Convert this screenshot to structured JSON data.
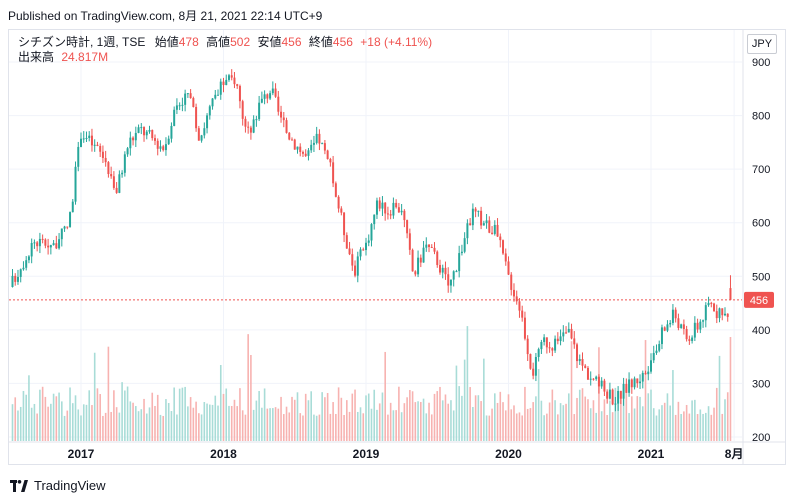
{
  "published": "Published on TradingView.com, 8月 21, 2021 22:14 UTC+9",
  "legend": {
    "symbol": "シチズン時計, 1週, TSE",
    "open_label": "始値",
    "open": "478",
    "high_label": "高値",
    "high": "502",
    "low_label": "安値",
    "low": "456",
    "close_label": "終値",
    "close": "456",
    "change": "+18 (+4.11%)",
    "volume_label": "出来高",
    "volume": "24.817M"
  },
  "currency": "JPY",
  "last_price_label": "456",
  "footer": {
    "brand": "TradingView"
  },
  "colors": {
    "up": "#26a69a",
    "down": "#ef5350",
    "up_volume": "#a8dcd7",
    "down_volume": "#f7b2b0",
    "grid": "#f0f3fa"
  },
  "chart_data": {
    "type": "candlestick",
    "y_axis": {
      "min": 200,
      "max": 900,
      "ticks": [
        200,
        300,
        400,
        500,
        600,
        700,
        800,
        900
      ]
    },
    "x_axis_labels": [
      "2017",
      "2018",
      "2019",
      "2020",
      "2021",
      "8月"
    ],
    "last_price": 456,
    "last_bar": {
      "open": 478,
      "high": 502,
      "low": 456,
      "close": 456
    },
    "volume_last": "24.817M",
    "price_path_approx": [
      [
        "2016-07",
        480
      ],
      [
        "2016-09",
        565
      ],
      [
        "2016-11",
        560
      ],
      [
        "2016-12",
        600
      ],
      [
        "2017-01",
        770
      ],
      [
        "2017-03",
        720
      ],
      [
        "2017-04",
        660
      ],
      [
        "2017-05",
        750
      ],
      [
        "2017-06",
        775
      ],
      [
        "2017-08",
        740
      ],
      [
        "2017-09",
        820
      ],
      [
        "2017-10",
        840
      ],
      [
        "2017-11",
        760
      ],
      [
        "2017-12",
        820
      ],
      [
        "2018-01",
        860
      ],
      [
        "2018-02",
        870
      ],
      [
        "2018-03",
        760
      ],
      [
        "2018-04",
        820
      ],
      [
        "2018-05",
        850
      ],
      [
        "2018-06",
        780
      ],
      [
        "2018-07",
        750
      ],
      [
        "2018-08",
        720
      ],
      [
        "2018-09",
        760
      ],
      [
        "2018-10",
        700
      ],
      [
        "2018-11",
        600
      ],
      [
        "2018-12",
        510
      ],
      [
        "2019-01",
        560
      ],
      [
        "2019-02",
        640
      ],
      [
        "2019-03",
        620
      ],
      [
        "2019-04",
        630
      ],
      [
        "2019-05",
        500
      ],
      [
        "2019-06",
        560
      ],
      [
        "2019-07",
        530
      ],
      [
        "2019-08",
        480
      ],
      [
        "2019-09",
        550
      ],
      [
        "2019-10",
        620
      ],
      [
        "2019-11",
        600
      ],
      [
        "2019-12",
        580
      ],
      [
        "2020-01",
        500
      ],
      [
        "2020-02",
        440
      ],
      [
        "2020-03",
        320
      ],
      [
        "2020-04",
        380
      ],
      [
        "2020-05",
        370
      ],
      [
        "2020-06",
        400
      ],
      [
        "2020-07",
        340
      ],
      [
        "2020-08",
        310
      ],
      [
        "2020-09",
        290
      ],
      [
        "2020-10",
        270
      ],
      [
        "2020-11",
        295
      ],
      [
        "2020-12",
        310
      ],
      [
        "2021-01",
        330
      ],
      [
        "2021-02",
        400
      ],
      [
        "2021-03",
        430
      ],
      [
        "2021-04",
        380
      ],
      [
        "2021-05",
        410
      ],
      [
        "2021-06",
        450
      ],
      [
        "2021-07",
        420
      ],
      [
        "2021-08",
        456
      ]
    ]
  }
}
